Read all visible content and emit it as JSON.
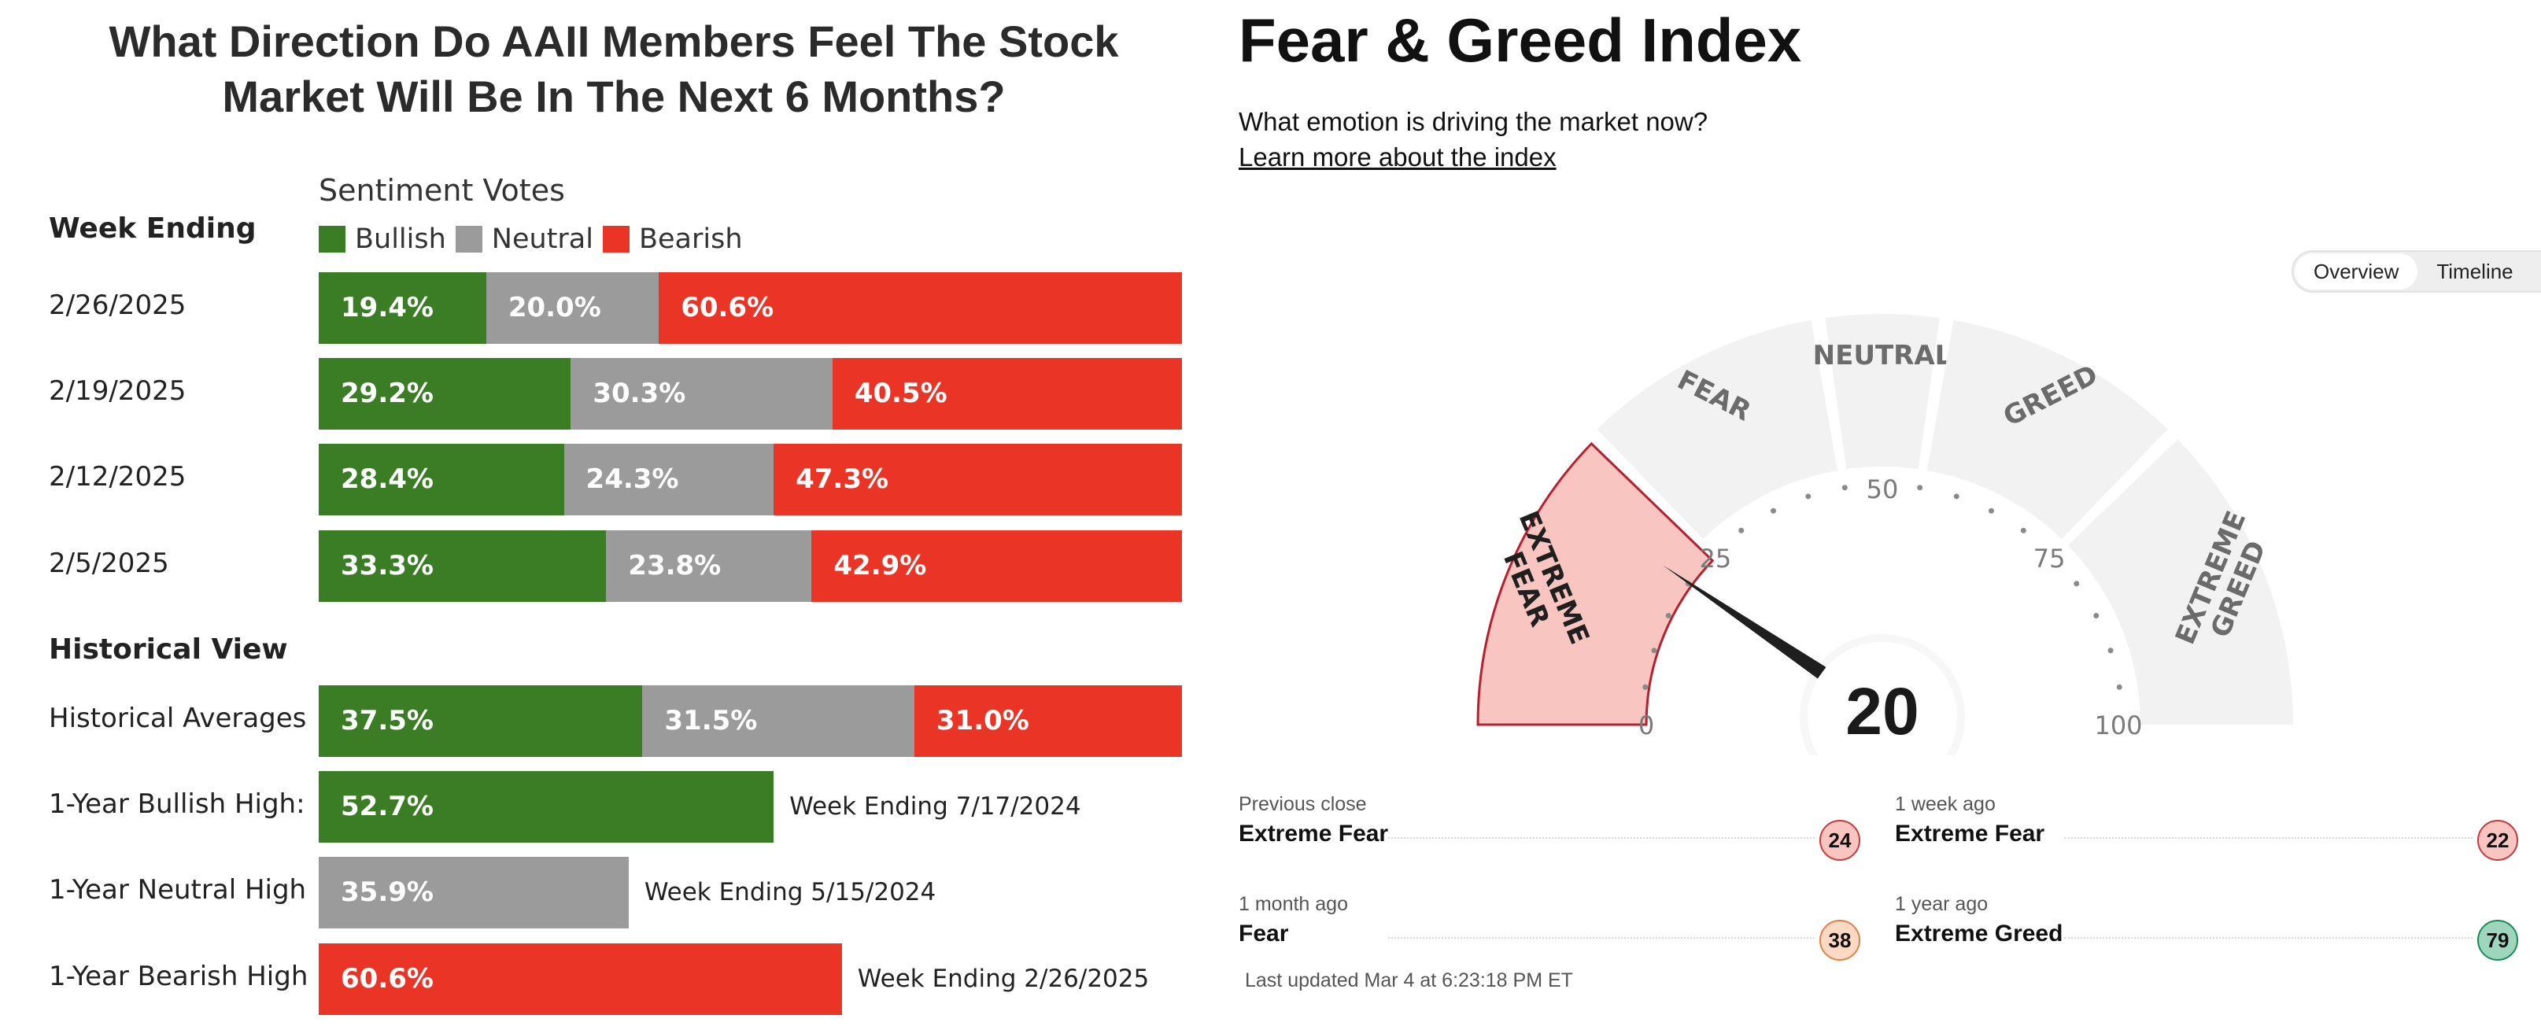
{
  "aaii": {
    "title_line1": "What Direction Do AAII Members Feel The Stock",
    "title_line2": "Market Will Be In The Next 6 Months?",
    "votes_title": "Sentiment Votes",
    "week_ending_header": "Week Ending",
    "historical_header": "Historical View",
    "legend": [
      "Bullish",
      "Neutral",
      "Bearish"
    ],
    "colors": {
      "bullish": "#3a7d25",
      "neutral": "#9b9b9b",
      "bearish": "#e93426"
    }
  },
  "chart_data": [
    {
      "type": "bar",
      "stacked": true,
      "orientation": "horizontal",
      "title": "What Direction Do AAII Members Feel The Stock Market Will Be In The Next 6 Months?",
      "subtitle": "Sentiment Votes",
      "categories": [
        "2/26/2025",
        "2/19/2025",
        "2/12/2025",
        "2/5/2025"
      ],
      "series": [
        {
          "name": "Bullish",
          "values": [
            19.4,
            29.2,
            28.4,
            33.3
          ],
          "labels": [
            "19.4%",
            "29.2%",
            "28.4%",
            "33.3%"
          ]
        },
        {
          "name": "Neutral",
          "values": [
            20.0,
            30.3,
            24.3,
            23.8
          ],
          "labels": [
            "20.0%",
            "30.3%",
            "24.3%",
            "23.8%"
          ]
        },
        {
          "name": "Bearish",
          "values": [
            60.6,
            40.5,
            47.3,
            42.9
          ],
          "labels": [
            "60.6%",
            "40.5%",
            "47.3%",
            "42.9%"
          ]
        }
      ],
      "xlim": [
        0,
        100
      ],
      "legend": "top"
    },
    {
      "type": "bar",
      "stacked": true,
      "orientation": "horizontal",
      "categories": [
        "Historical Averages"
      ],
      "series": [
        {
          "name": "Bullish",
          "values": [
            37.5
          ],
          "labels": [
            "37.5%"
          ]
        },
        {
          "name": "Neutral",
          "values": [
            31.5
          ],
          "labels": [
            "31.5%"
          ]
        },
        {
          "name": "Bearish",
          "values": [
            31.0
          ],
          "labels": [
            "31.0%"
          ]
        }
      ],
      "xlim": [
        0,
        100
      ]
    },
    {
      "type": "bar",
      "orientation": "horizontal",
      "categories": [
        "1-Year Bullish High:",
        "1-Year Neutral High",
        "1-Year Bearish High"
      ],
      "values": [
        52.7,
        35.9,
        60.6
      ],
      "labels": [
        "52.7%",
        "35.9%",
        "60.6%"
      ],
      "series_type": [
        "bullish",
        "neutral",
        "bearish"
      ],
      "annotations": [
        "Week Ending 7/17/2024",
        "Week Ending 5/15/2024",
        "Week Ending 2/26/2025"
      ],
      "xlim": [
        0,
        100
      ]
    }
  ],
  "fear_greed": {
    "title": "Fear & Greed Index",
    "subtitle": "What emotion is driving the market now?",
    "link": "Learn more about the index",
    "tabs": [
      "Overview",
      "Timeline"
    ],
    "active_tab": "Overview",
    "value": 20,
    "scale": [
      0,
      100
    ],
    "ticks": [
      "0",
      "25",
      "50",
      "75",
      "100"
    ],
    "zones": [
      {
        "label": "EXTREME FEAR",
        "from": 0,
        "to": 25
      },
      {
        "label": "FEAR",
        "from": 25,
        "to": 45
      },
      {
        "label": "NEUTRAL",
        "from": 45,
        "to": 55
      },
      {
        "label": "GREED",
        "from": 55,
        "to": 75
      },
      {
        "label": "EXTREME GREED",
        "from": 75,
        "to": 100
      }
    ],
    "active_zone": "EXTREME FEAR",
    "colors": {
      "zone": "#f2f2f2",
      "active_fill": "#f8c5c0",
      "active_stroke": "#b5212e",
      "needle": "#1f1f1f",
      "zone_text": "#6b6b6b",
      "active_text": "#1f1f1f"
    },
    "stats": [
      {
        "label": "Previous close",
        "rating": "Extreme Fear",
        "value": "24",
        "bg": "#f8c5c0",
        "border": "#c53a3a"
      },
      {
        "label": "1 week ago",
        "rating": "Extreme Fear",
        "value": "22",
        "bg": "#f8c5c0",
        "border": "#c53a3a"
      },
      {
        "label": "1 month ago",
        "rating": "Fear",
        "value": "38",
        "bg": "#fbd9c2",
        "border": "#e0804a"
      },
      {
        "label": "1 year ago",
        "rating": "Extreme Greed",
        "value": "79",
        "bg": "#9ed6bd",
        "border": "#1e8a5a"
      }
    ],
    "last_updated": "Last updated Mar 4 at 6:23:18 PM ET"
  }
}
